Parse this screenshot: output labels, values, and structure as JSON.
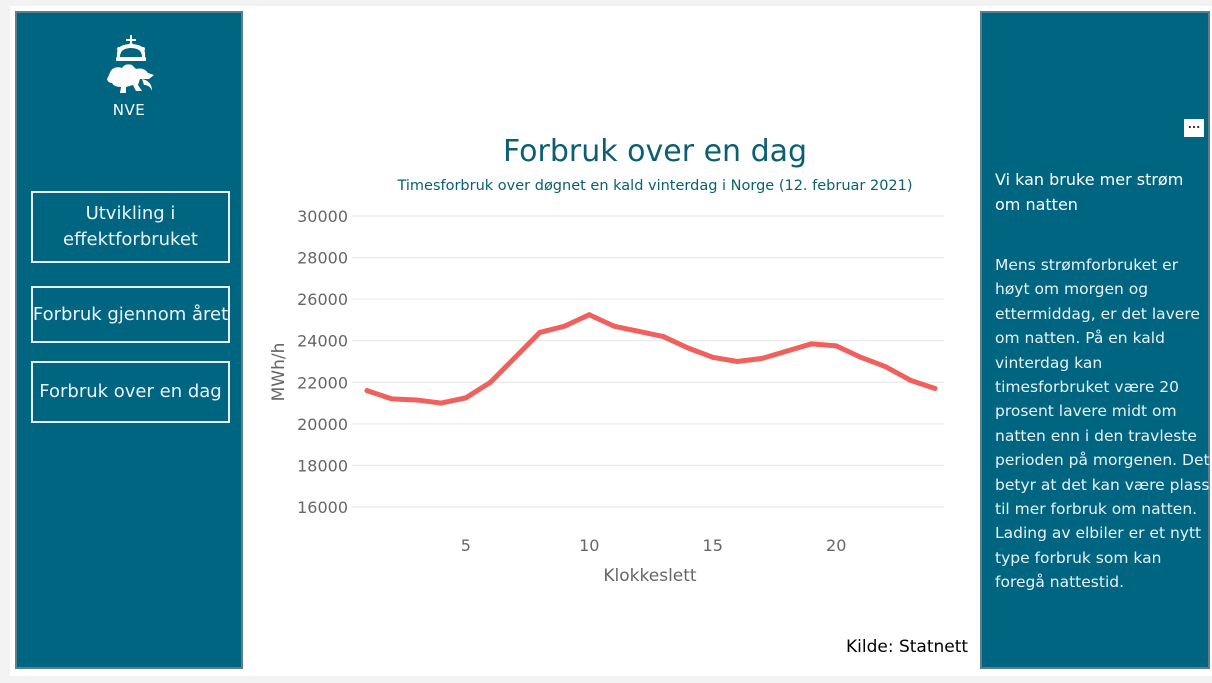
{
  "sidebar": {
    "logo_text": "NVE",
    "nav": [
      {
        "label": "Utvikling i effektforbruket"
      },
      {
        "label": "Forbruk gjennom året"
      },
      {
        "label": "Forbruk over en dag"
      }
    ]
  },
  "info_panel": {
    "more_label": "...",
    "title": "Vi kan bruke mer strøm om natten",
    "body": "Mens strømforbruket er høyt om morgen og ettermiddag, er det lavere om natten. På en kald vinterdag kan timesforbruket være 20 prosent lavere midt om natten enn i den travleste perioden på morgenen. Det betyr at det kan være plass til mer forbruk om natten. Lading av elbiler er et nytt type forbruk som kan foregå nattestid."
  },
  "source": "Kilde: Statnett",
  "colors": {
    "panel": "#006580",
    "title": "#0b5e73",
    "line": "#f0605c"
  },
  "chart_data": {
    "type": "line",
    "title": "Forbruk over en dag",
    "subtitle": "Timesforbruk over døgnet en kald vinterdag i Norge (12. februar 2021)",
    "xlabel": "Klokkeslett",
    "ylabel": "MWh/h",
    "x": [
      1,
      2,
      3,
      4,
      5,
      6,
      7,
      8,
      9,
      10,
      11,
      12,
      13,
      14,
      15,
      16,
      17,
      18,
      19,
      20,
      21,
      22,
      23,
      24
    ],
    "series": [
      {
        "values": [
          21600,
          21200,
          21150,
          21000,
          21250,
          22000,
          23200,
          24400,
          24700,
          25250,
          24700,
          24450,
          24200,
          23650,
          23200,
          23000,
          23150,
          23500,
          23850,
          23750,
          23200,
          22750,
          22100,
          21700
        ]
      }
    ],
    "xticks": [
      5,
      10,
      15,
      20
    ],
    "yticks": [
      16000,
      18000,
      20000,
      22000,
      24000,
      26000,
      28000,
      30000
    ],
    "xlim": [
      1,
      24
    ],
    "ylim": [
      16000,
      30000
    ],
    "grid": true
  }
}
